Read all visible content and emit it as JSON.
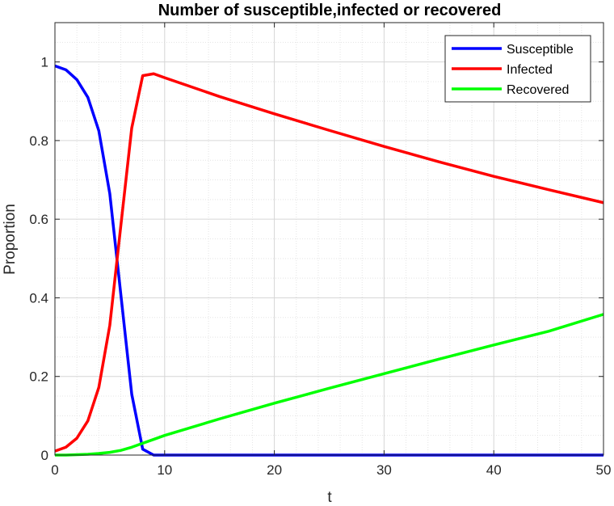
{
  "chart_data": {
    "type": "line",
    "title": "Number of susceptible,infected or recovered",
    "xlabel": "t",
    "ylabel": "Proportion",
    "xlim": [
      0,
      50
    ],
    "ylim": [
      0,
      1.1
    ],
    "x_ticks": [
      0,
      10,
      20,
      30,
      40,
      50
    ],
    "y_ticks": [
      0,
      0.2,
      0.4,
      0.6,
      0.8,
      1
    ],
    "x_tick_labels": [
      "0",
      "10",
      "20",
      "30",
      "40",
      "50"
    ],
    "y_tick_labels": [
      "0",
      "0.2",
      "0.4",
      "0.6",
      "0.8",
      "1"
    ],
    "grid": true,
    "minor_grid": true,
    "legend_position": "top-right",
    "series": [
      {
        "name": "Susceptible",
        "color": "#0000FF",
        "x": [
          0,
          1,
          2,
          3,
          4,
          5,
          6,
          7,
          8,
          9,
          10,
          15,
          20,
          25,
          30,
          35,
          40,
          45,
          50
        ],
        "y": [
          0.99,
          0.98,
          0.955,
          0.91,
          0.825,
          0.665,
          0.41,
          0.155,
          0.015,
          0.0,
          0.0,
          0.0,
          0.0,
          0.0,
          0.0,
          0.0,
          0.0,
          0.0,
          0.0
        ]
      },
      {
        "name": "Infected",
        "color": "#FF0000",
        "x": [
          0,
          1,
          2,
          3,
          4,
          5,
          6,
          7,
          8,
          9,
          10,
          15,
          20,
          25,
          30,
          35,
          40,
          45,
          50
        ],
        "y": [
          0.01,
          0.02,
          0.043,
          0.087,
          0.172,
          0.33,
          0.582,
          0.832,
          0.965,
          0.97,
          0.96,
          0.912,
          0.868,
          0.826,
          0.785,
          0.746,
          0.709,
          0.675,
          0.642
        ]
      },
      {
        "name": "Recovered",
        "color": "#00FF00",
        "x": [
          0,
          1,
          2,
          3,
          4,
          5,
          6,
          7,
          8,
          9,
          10,
          15,
          20,
          25,
          30,
          35,
          40,
          45,
          50
        ],
        "y": [
          0.0,
          0.0,
          0.001,
          0.002,
          0.004,
          0.007,
          0.012,
          0.02,
          0.03,
          0.04,
          0.05,
          0.092,
          0.132,
          0.17,
          0.207,
          0.244,
          0.28,
          0.315,
          0.358
        ]
      }
    ]
  }
}
